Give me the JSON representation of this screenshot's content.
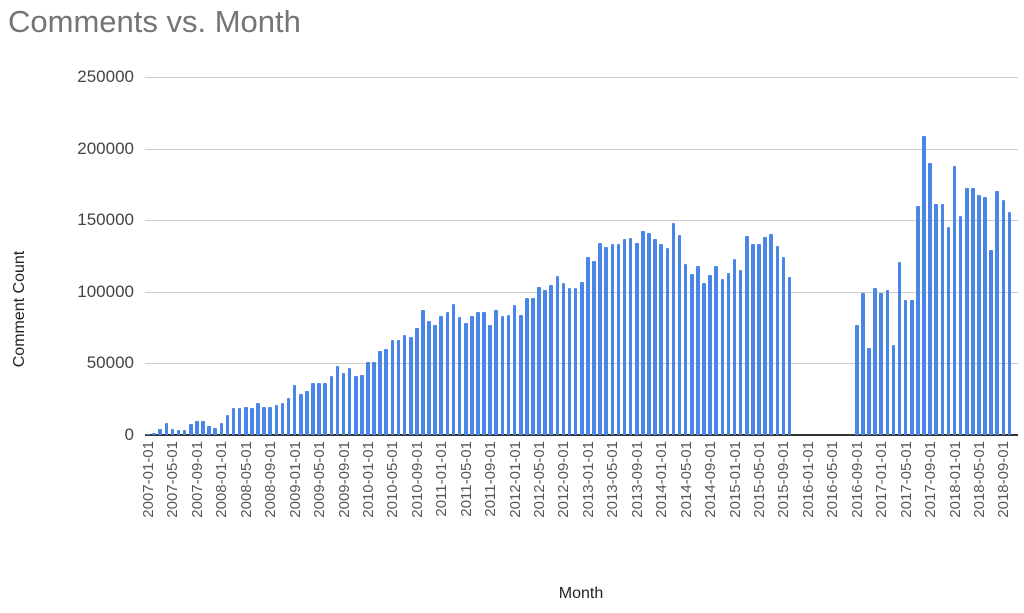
{
  "chart_data": {
    "type": "bar",
    "title": "Comments vs. Month",
    "xlabel": "Month",
    "ylabel": "Comment Count",
    "ylim": [
      0,
      250000
    ],
    "yticks": [
      "0",
      "50000",
      "100000",
      "150000",
      "200000",
      "250000"
    ],
    "xtick_labels": [
      "2007-01-01",
      "2007-05-01",
      "2007-09-01",
      "2008-01-01",
      "2008-05-01",
      "2008-09-01",
      "2009-01-01",
      "2009-05-01",
      "2009-09-01",
      "2010-01-01",
      "2010-05-01",
      "2010-09-01",
      "2011-01-01",
      "2011-05-01",
      "2011-09-01",
      "2012-01-01",
      "2012-05-01",
      "2012-09-01",
      "2013-01-01",
      "2013-05-01",
      "2013-09-01",
      "2014-01-01",
      "2014-05-01",
      "2014-09-01",
      "2015-01-01",
      "2015-05-01",
      "2015-09-01",
      "2016-01-01",
      "2016-05-01",
      "2016-09-01",
      "2017-01-01",
      "2017-05-01",
      "2017-09-01",
      "2018-01-01",
      "2018-05-01",
      "2018-09-01"
    ],
    "grid": true,
    "legend": "none",
    "bar_color": "#4a86e8",
    "start_month": "2007-01",
    "series": [
      {
        "name": "Comment Count",
        "values": [
          800,
          1500,
          4000,
          8500,
          4000,
          3500,
          3500,
          8000,
          9500,
          9500,
          6000,
          4700,
          8600,
          13700,
          18600,
          18600,
          19800,
          18600,
          22400,
          19800,
          19800,
          21000,
          22000,
          26000,
          35000,
          28500,
          31000,
          36000,
          36000,
          36000,
          41000,
          48000,
          43500,
          47000,
          41000,
          42000,
          51000,
          51000,
          58500,
          60000,
          66000,
          66000,
          69500,
          68500,
          74500,
          87000,
          79600,
          77000,
          83300,
          85800,
          91700,
          82400,
          78400,
          83300,
          85800,
          86000,
          77000,
          87500,
          83000,
          84000,
          91000,
          84000,
          96000,
          96000,
          103500,
          101000,
          104500,
          111000,
          106000,
          102500,
          102500,
          107000,
          124000,
          121500,
          134200,
          131400,
          133100,
          133100,
          136600,
          137700,
          134200,
          142600,
          140800,
          136600,
          133100,
          130300,
          147800,
          139400,
          119200,
          112200,
          118000,
          105900,
          111700,
          118000,
          109100,
          112900,
          122800,
          115400,
          139100,
          133100,
          133100,
          138000,
          140100,
          131900,
          124000,
          110500,
          0,
          0,
          0,
          0,
          0,
          0,
          0,
          0,
          0,
          0,
          76800,
          99300,
          60500,
          103000,
          99300,
          101600,
          63000,
          120500,
          94200,
          94200,
          160000,
          208600,
          190000,
          161400,
          161400,
          145400,
          187700,
          152800,
          172600,
          172600,
          167500,
          166300,
          129100,
          170300,
          164000,
          155400
        ]
      }
    ]
  }
}
